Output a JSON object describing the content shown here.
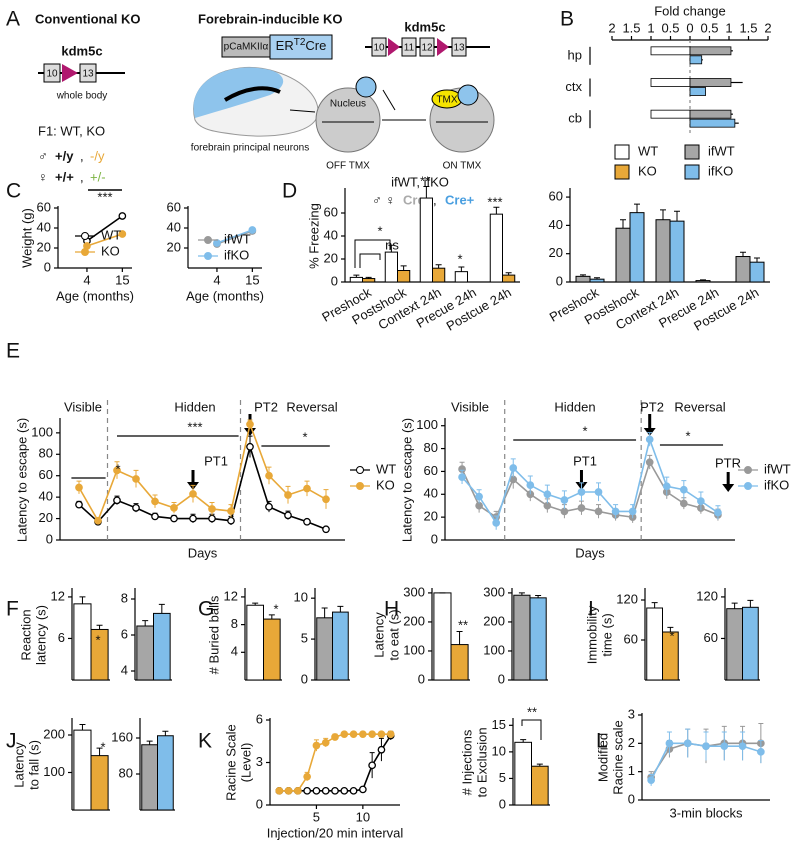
{
  "panel_labels": [
    "A",
    "B",
    "C",
    "D",
    "E",
    "F",
    "G",
    "H",
    "I",
    "J",
    "K",
    "L"
  ],
  "panel_a": {
    "conventional": {
      "title": "Conventional KO",
      "gene": "kdm5c",
      "exons": [
        "10",
        "13"
      ],
      "caption": "whole body",
      "f1": "F1: WT, KO",
      "male": "♂",
      "male_wt": "+/y",
      "comma": ",",
      "male_ko": "-/y",
      "female": "♀",
      "female_wt": "+/+",
      "female_het": "+/-"
    },
    "inducible": {
      "title": "Forebrain-inducible KO",
      "promoter": "pCaMKIIα",
      "cre": [
        "ER",
        "T2",
        "Cre"
      ],
      "gene": "kdm5c",
      "exons": [
        "10",
        "11",
        "12",
        "13"
      ],
      "caption": "forebrain principal neurons",
      "nucleus": "Nucleus",
      "tmx": "TMX",
      "off": "OFF  TMX",
      "on": "ON  TMX",
      "genotypes": "ifWT, ifKO",
      "sexes": "♂ ♀",
      "cre_neg": "Cre-",
      "comma": ",",
      "cre_pos": "Cre+"
    }
  },
  "chart_data": [
    {
      "type": "hbar",
      "title": "Fold change",
      "categories": [
        "hp",
        "ctx",
        "cb"
      ],
      "series": [
        {
          "name": "WT",
          "color": "#ffffff",
          "values": [
            -1,
            -1,
            -1
          ]
        },
        {
          "name": "KO",
          "color": "#e8a838",
          "values": [
            0,
            0,
            0
          ]
        },
        {
          "name": "ifWT",
          "color": "#a6a6a6",
          "values": [
            1.05,
            1.05,
            1.05
          ],
          "errors": [
            0.05,
            0.3,
            0.05
          ]
        },
        {
          "name": "ifKO",
          "color": "#7fbdea",
          "values": [
            0.3,
            0.4,
            1.15
          ],
          "errors": [
            0.03,
            0,
            0.1
          ]
        }
      ],
      "xlim": [
        -2,
        2
      ],
      "xticks": [
        {
          "value": -2,
          "label": "2"
        },
        {
          "value": -1.5,
          "label": "1.5"
        },
        {
          "value": -1,
          "label": "1"
        },
        {
          "value": -0.5,
          "label": "0.5"
        },
        0,
        0.5,
        1,
        1.5,
        2
      ],
      "annotations": [
        "***",
        "***",
        "*",
        "*"
      ],
      "legend": "bottom"
    },
    {
      "type": "line",
      "ylabel": "Weight (g)",
      "xlabel": "Age (months)",
      "x": [
        4,
        15
      ],
      "xlim": [
        -5,
        18
      ],
      "xticks": [
        4,
        15
      ],
      "ylim": [
        0,
        60
      ],
      "yticks": [
        0,
        20,
        40,
        60
      ],
      "series": [
        {
          "name": "WT",
          "color": "#000000",
          "marker": "open",
          "values": [
            27,
            52
          ],
          "errors": [
            1,
            1.5
          ]
        },
        {
          "name": "KO",
          "color": "#e8a838",
          "marker": "filled",
          "values": [
            22,
            34
          ],
          "errors": [
            1,
            2
          ]
        }
      ],
      "annotations": [
        "***"
      ],
      "legend": "bottom-right"
    },
    {
      "type": "line",
      "xlabel": "Age (months)",
      "x": [
        4,
        15
      ],
      "xlim": [
        -5,
        18
      ],
      "xticks": [
        4,
        15
      ],
      "ylim": [
        0,
        60
      ],
      "yticks": [
        20,
        40,
        60
      ],
      "series": [
        {
          "name": "ifWT",
          "color": "#999999",
          "marker": "filled",
          "values": [
            24,
            37
          ],
          "errors": [
            1,
            1.5
          ]
        },
        {
          "name": "ifKO",
          "color": "#7fbdea",
          "marker": "filled",
          "values": [
            25,
            38
          ],
          "errors": [
            1,
            1.5
          ]
        }
      ],
      "legend": "bottom-right"
    },
    {
      "type": "bar",
      "ylabel": "% Freezing",
      "categories": [
        "Preshock",
        "Postshock",
        "Context 24h",
        "Precue 24h",
        "Postcue 24h"
      ],
      "ylim": [
        0,
        80
      ],
      "yticks": [
        0,
        20,
        40,
        60
      ],
      "series": [
        {
          "color": "#ffffff",
          "values": [
            4,
            26,
            73,
            9,
            59
          ],
          "errors": [
            2,
            6,
            10,
            4,
            6
          ]
        },
        {
          "color": "#e8a838",
          "values": [
            3,
            10,
            12,
            0,
            6
          ],
          "errors": [
            1,
            4,
            3,
            0,
            2
          ]
        }
      ],
      "annotations": [
        "*",
        "ns",
        "**",
        "*",
        "***"
      ]
    },
    {
      "type": "bar",
      "categories": [
        "Preshock",
        "Postshock",
        "Context 24h",
        "Precue 24h",
        "Postcue 24h"
      ],
      "ylim": [
        0,
        65
      ],
      "yticks": [
        0,
        20,
        40,
        60
      ],
      "series": [
        {
          "color": "#a6a6a6",
          "values": [
            4,
            38,
            44,
            1,
            18
          ],
          "errors": [
            1,
            6,
            7,
            0.5,
            3
          ]
        },
        {
          "color": "#7fbdea",
          "values": [
            2,
            49,
            43,
            0,
            14
          ],
          "errors": [
            1,
            6,
            7,
            0,
            3
          ]
        }
      ]
    },
    {
      "type": "line",
      "ylabel": "Latency to escape (s)",
      "xlabel": "Days",
      "x": [
        1,
        2,
        3,
        4,
        5,
        6,
        7,
        8,
        9,
        10,
        11,
        12,
        13,
        14
      ],
      "xlim": [
        0,
        15
      ],
      "ylim": [
        0,
        112
      ],
      "yticks": [
        0,
        20,
        40,
        60,
        80,
        100
      ],
      "series": [
        {
          "name": "WT",
          "color": "#000000",
          "marker": "open",
          "values": [
            33,
            17,
            37,
            30,
            22,
            20,
            20,
            20,
            18,
            87,
            31,
            23,
            17,
            10
          ],
          "errors": [
            3,
            1,
            4,
            4,
            3,
            3,
            4,
            4,
            4,
            10,
            5,
            4,
            2,
            1
          ]
        },
        {
          "name": "KO",
          "color": "#e8a838",
          "marker": "filled",
          "values": [
            49,
            18,
            65,
            57,
            36,
            30,
            43,
            29,
            27,
            108,
            60,
            42,
            48,
            38
          ],
          "errors": [
            6,
            2,
            8,
            8,
            6,
            5,
            8,
            6,
            6,
            4,
            8,
            8,
            7,
            9
          ]
        }
      ],
      "annotations": [
        "Visible",
        "Hidden",
        "PT2",
        "Reversal",
        "PT1",
        "*",
        "***",
        "*"
      ],
      "legend": "right"
    },
    {
      "type": "line",
      "ylabel": "Latency to escape (s)",
      "xlabel": "Days",
      "x": [
        1,
        2,
        3,
        4,
        5,
        6,
        7,
        8,
        9,
        10,
        11,
        12,
        13,
        14,
        15,
        16
      ],
      "xlim": [
        0,
        17
      ],
      "ylim": [
        0,
        105
      ],
      "yticks": [
        0,
        20,
        40,
        60,
        80,
        100
      ],
      "series": [
        {
          "name": "ifWT",
          "color": "#999999",
          "marker": "filled",
          "values": [
            62,
            30,
            20,
            53,
            40,
            30,
            25,
            28,
            25,
            22,
            20,
            68,
            42,
            32,
            28,
            22
          ],
          "errors": [
            6,
            6,
            5,
            8,
            6,
            6,
            6,
            6,
            6,
            5,
            5,
            6,
            6,
            5,
            5,
            5
          ]
        },
        {
          "name": "ifKO",
          "color": "#7fbdea",
          "marker": "filled",
          "values": [
            55,
            38,
            15,
            63,
            48,
            40,
            35,
            42,
            42,
            25,
            25,
            88,
            47,
            44,
            34,
            24
          ],
          "errors": [
            6,
            6,
            6,
            8,
            8,
            8,
            8,
            8,
            8,
            6,
            6,
            6,
            8,
            8,
            8,
            6
          ]
        }
      ],
      "annotations": [
        "Visible",
        "Hidden",
        "PT2",
        "Reversal",
        "PT1",
        "PTR",
        "*",
        "*"
      ],
      "legend": "right"
    },
    {
      "type": "bar",
      "ylabel": [
        "Reaction",
        "latency (s)"
      ],
      "ylim": [
        0,
        13
      ],
      "yticks": [
        6,
        12
      ],
      "series": [
        {
          "color": "#ffffff",
          "values": [
            11
          ],
          "errors": [
            1
          ]
        },
        {
          "color": "#e8a838",
          "values": [
            7.3
          ],
          "errors": [
            0.6
          ]
        }
      ],
      "annotations": [
        "*"
      ]
    },
    {
      "type": "bar",
      "ylim": [
        3.5,
        8.5
      ],
      "yticks": [
        4,
        6,
        8
      ],
      "series": [
        {
          "color": "#a6a6a6",
          "values": [
            6.5
          ],
          "errors": [
            0.3
          ]
        },
        {
          "color": "#7fbdea",
          "values": [
            7.2
          ],
          "errors": [
            0.5
          ]
        }
      ]
    },
    {
      "type": "bar",
      "ylabel": "# Buried balls",
      "ylim": [
        0,
        13
      ],
      "yticks": [
        4,
        8,
        12
      ],
      "series": [
        {
          "color": "#ffffff",
          "values": [
            10.8
          ],
          "errors": [
            0.3
          ]
        },
        {
          "color": "#e8a838",
          "values": [
            8.8
          ],
          "errors": [
            0.6
          ]
        }
      ],
      "annotations": [
        "*"
      ]
    },
    {
      "type": "bar",
      "ylim": [
        0,
        11
      ],
      "yticks": [
        0,
        5,
        10
      ],
      "series": [
        {
          "color": "#a6a6a6",
          "values": [
            7.6
          ],
          "errors": [
            1.2
          ]
        },
        {
          "color": "#7fbdea",
          "values": [
            8.3
          ],
          "errors": [
            0.7
          ]
        }
      ]
    },
    {
      "type": "bar",
      "ylabel": [
        "Latency",
        "to eat (s)"
      ],
      "ylim": [
        0,
        310
      ],
      "yticks": [
        0,
        100,
        200,
        300
      ],
      "series": [
        {
          "color": "#ffffff",
          "values": [
            300
          ],
          "errors": [
            0
          ]
        },
        {
          "color": "#e8a838",
          "values": [
            122
          ],
          "errors": [
            45
          ]
        }
      ],
      "annotations": [
        "**"
      ]
    },
    {
      "type": "bar",
      "ylim": [
        0,
        310
      ],
      "yticks": [
        0,
        100,
        200,
        300
      ],
      "series": [
        {
          "color": "#a6a6a6",
          "values": [
            292
          ],
          "errors": [
            8
          ]
        },
        {
          "color": "#7fbdea",
          "values": [
            283
          ],
          "errors": [
            8
          ]
        }
      ]
    },
    {
      "type": "bar",
      "ylabel": [
        "Immobility",
        "time (s)"
      ],
      "ylim": [
        0,
        135
      ],
      "yticks": [
        60,
        120
      ],
      "series": [
        {
          "color": "#ffffff",
          "values": [
            108
          ],
          "errors": [
            8
          ]
        },
        {
          "color": "#e8a838",
          "values": [
            72
          ],
          "errors": [
            7
          ]
        }
      ],
      "annotations": [
        "*"
      ]
    },
    {
      "type": "bar",
      "ylim": [
        0,
        130
      ],
      "yticks": [
        60,
        120
      ],
      "series": [
        {
          "color": "#a6a6a6",
          "values": [
            103
          ],
          "errors": [
            8
          ]
        },
        {
          "color": "#7fbdea",
          "values": [
            105
          ],
          "errors": [
            10
          ]
        }
      ]
    },
    {
      "type": "bar",
      "ylabel": [
        "Latency",
        "to fall (s)"
      ],
      "ylim": [
        0,
        240
      ],
      "yticks": [
        100,
        200
      ],
      "series": [
        {
          "color": "#ffffff",
          "values": [
            213
          ],
          "errors": [
            15
          ]
        },
        {
          "color": "#e8a838",
          "values": [
            145
          ],
          "errors": [
            20
          ]
        }
      ],
      "annotations": [
        "*"
      ]
    },
    {
      "type": "bar",
      "ylim": [
        0,
        200
      ],
      "yticks": [
        80,
        160
      ],
      "series": [
        {
          "color": "#a6a6a6",
          "values": [
            145
          ],
          "errors": [
            8
          ]
        },
        {
          "color": "#7fbdea",
          "values": [
            165
          ],
          "errors": [
            10
          ]
        }
      ]
    },
    {
      "type": "line",
      "ylabel": [
        "Racine Scale",
        "(Level)"
      ],
      "xlabel": "Injection/20 min interval",
      "x": [
        1,
        2,
        3,
        4,
        5,
        6,
        7,
        8,
        9,
        10,
        11,
        12,
        13
      ],
      "xlim": [
        0,
        14
      ],
      "xticks": [
        5,
        10
      ],
      "ylim": [
        0,
        6
      ],
      "yticks": [
        0,
        3,
        6
      ],
      "series": [
        {
          "color": "#000000",
          "marker": "open",
          "values": [
            1,
            1,
            1,
            1,
            1,
            1,
            1,
            1,
            1,
            1.1,
            2.8,
            3.9,
            4.9
          ],
          "errors": [
            0,
            0,
            0,
            0,
            0,
            0,
            0,
            0,
            0,
            0.1,
            0.9,
            0.8,
            0.3
          ]
        },
        {
          "color": "#e8a838",
          "marker": "filled",
          "values": [
            1,
            1,
            1,
            2,
            4.2,
            4.4,
            4.8,
            5,
            5,
            5,
            5,
            5,
            5
          ],
          "errors": [
            0,
            0,
            0,
            0.3,
            0.4,
            0.3,
            0.2,
            0,
            0,
            0,
            0,
            0,
            0
          ]
        }
      ]
    },
    {
      "type": "bar",
      "ylabel": [
        "# Injections",
        "to Exclusion"
      ],
      "ylim": [
        0,
        16
      ],
      "yticks": [
        0,
        5,
        10,
        15
      ],
      "series": [
        {
          "color": "#ffffff",
          "values": [
            11.8
          ],
          "errors": [
            0.5
          ]
        },
        {
          "color": "#e8a838",
          "values": [
            7.3
          ],
          "errors": [
            0.4
          ]
        }
      ],
      "annotations": [
        "**"
      ]
    },
    {
      "type": "line",
      "ylabel": [
        "Modified",
        "Racine scale"
      ],
      "xlabel": "3-min blocks",
      "x": [
        1,
        2,
        3,
        4,
        5,
        6,
        7
      ],
      "xlim": [
        0.5,
        7.5
      ],
      "ylim": [
        0,
        3
      ],
      "yticks": [
        0,
        1,
        2,
        3
      ],
      "series": [
        {
          "color": "#999999",
          "marker": "filled",
          "values": [
            0.8,
            1.8,
            2,
            1.9,
            2,
            2,
            2
          ],
          "errors": [
            0.2,
            0.3,
            0.5,
            0.6,
            0.6,
            0.6,
            0.7
          ]
        },
        {
          "color": "#7fbdea",
          "marker": "filled",
          "values": [
            0.7,
            2,
            2,
            1.9,
            1.9,
            1.9,
            1.7
          ],
          "errors": [
            0.2,
            0.4,
            0.5,
            0.5,
            0.5,
            0.5,
            0.4
          ]
        }
      ]
    }
  ]
}
